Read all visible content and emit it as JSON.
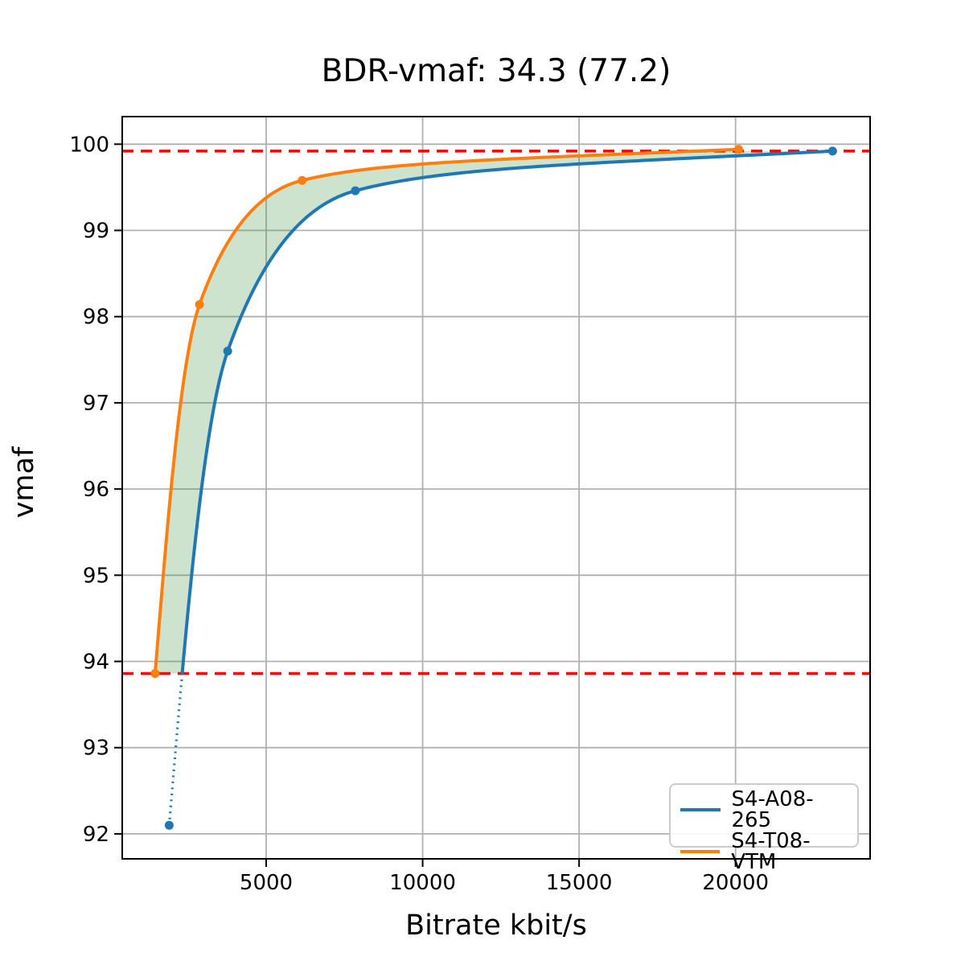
{
  "title": "BDR-vmaf: 34.3 (77.2)",
  "xlabel": "Bitrate kbit/s",
  "ylabel": "vmaf",
  "legend": {
    "position": "lower right",
    "items": [
      {
        "label": "S4-A08-265",
        "color": "#1f77b4"
      },
      {
        "label": "S4-T08-VTM",
        "color": "#ff7f0e"
      }
    ]
  },
  "annotation": {
    "bdr_value": 34.3,
    "parenthetical_value": 77.2
  },
  "chart_data": {
    "type": "line",
    "title": "BDR-vmaf: 34.3 (77.2)",
    "xlabel": "Bitrate kbit/s",
    "ylabel": "vmaf",
    "xlim": [
      400,
      24300
    ],
    "ylim": [
      91.71,
      100.32
    ],
    "x_ticks": [
      5000,
      10000,
      15000,
      20000
    ],
    "y_ticks": [
      92,
      93,
      94,
      95,
      96,
      97,
      98,
      99,
      100
    ],
    "grid": true,
    "grid_color": "#b0b0b0",
    "spine_color": "#000000",
    "legend_position": "lower right",
    "series": [
      {
        "name": "S4-A08-265",
        "color": "#1f77b4",
        "style": "solid-with-dotted-tail-below-interval",
        "points": [
          [
            1900,
            92.1
          ],
          [
            3770,
            97.6
          ],
          [
            7850,
            99.46
          ],
          [
            23100,
            99.92
          ]
        ]
      },
      {
        "name": "S4-T08-VTM",
        "color": "#ff7f0e",
        "style": "solid",
        "points": [
          [
            1450,
            93.86
          ],
          [
            2870,
            98.14
          ],
          [
            6150,
            99.58
          ],
          [
            20100,
            99.94
          ]
        ]
      }
    ],
    "hlines": {
      "comment": "BD integration interval bounds",
      "color": "#ff0000",
      "style": "dashed",
      "values": [
        93.86,
        99.92
      ]
    },
    "shaded_region": {
      "between": [
        "S4-T08-VTM",
        "S4-A08-265"
      ],
      "y_range": [
        93.86,
        99.92
      ],
      "color": "#3a8f3a",
      "alpha": 0.25
    }
  }
}
